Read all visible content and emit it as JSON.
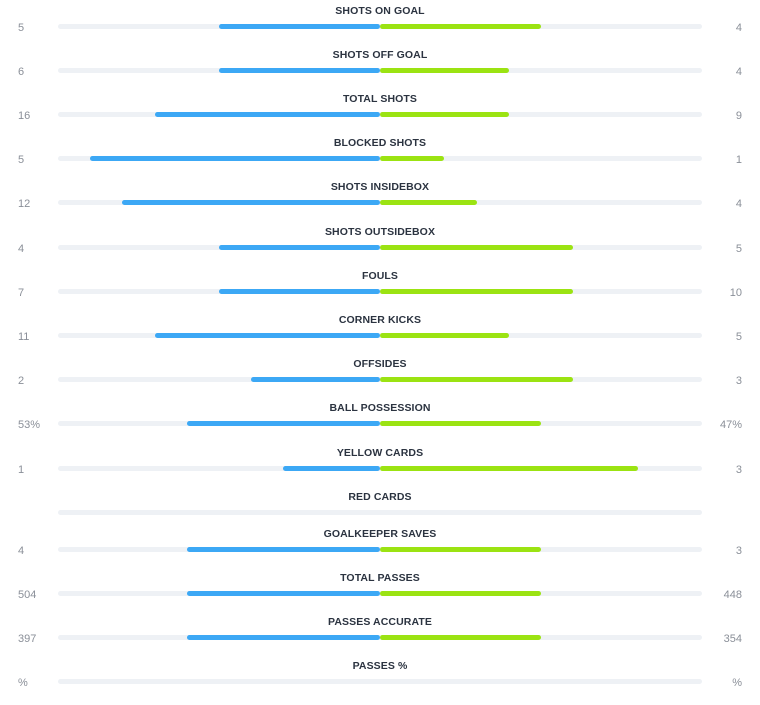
{
  "colors": {
    "home": "#3ca8f5",
    "away": "#9be312",
    "track": "#eef1f5"
  },
  "stats": [
    {
      "label": "SHOTS ON GOAL",
      "home": "5",
      "away": "4",
      "home_share": 0.5,
      "away_share": 0.5
    },
    {
      "label": "SHOTS OFF GOAL",
      "home": "6",
      "away": "4",
      "home_share": 0.5,
      "away_share": 0.4
    },
    {
      "label": "TOTAL SHOTS",
      "home": "16",
      "away": "9",
      "home_share": 0.7,
      "away_share": 0.4
    },
    {
      "label": "BLOCKED SHOTS",
      "home": "5",
      "away": "1",
      "home_share": 0.9,
      "away_share": 0.2
    },
    {
      "label": "SHOTS INSIDEBOX",
      "home": "12",
      "away": "4",
      "home_share": 0.8,
      "away_share": 0.3
    },
    {
      "label": "SHOTS OUTSIDEBOX",
      "home": "4",
      "away": "5",
      "home_share": 0.5,
      "away_share": 0.6
    },
    {
      "label": "FOULS",
      "home": "7",
      "away": "10",
      "home_share": 0.5,
      "away_share": 0.6
    },
    {
      "label": "CORNER KICKS",
      "home": "11",
      "away": "5",
      "home_share": 0.7,
      "away_share": 0.4
    },
    {
      "label": "OFFSIDES",
      "home": "2",
      "away": "3",
      "home_share": 0.4,
      "away_share": 0.6
    },
    {
      "label": "BALL POSSESSION",
      "home": "53%",
      "away": "47%",
      "home_share": 0.6,
      "away_share": 0.5
    },
    {
      "label": "YELLOW CARDS",
      "home": "1",
      "away": "3",
      "home_share": 0.3,
      "away_share": 0.8
    },
    {
      "label": "RED CARDS",
      "home": "",
      "away": "",
      "home_share": 0,
      "away_share": 0
    },
    {
      "label": "GOALKEEPER SAVES",
      "home": "4",
      "away": "3",
      "home_share": 0.6,
      "away_share": 0.5
    },
    {
      "label": "TOTAL PASSES",
      "home": "504",
      "away": "448",
      "home_share": 0.6,
      "away_share": 0.5
    },
    {
      "label": "PASSES ACCURATE",
      "home": "397",
      "away": "354",
      "home_share": 0.6,
      "away_share": 0.5
    },
    {
      "label": "PASSES %",
      "home": "%",
      "away": "%",
      "home_share": 0,
      "away_share": 0
    }
  ]
}
